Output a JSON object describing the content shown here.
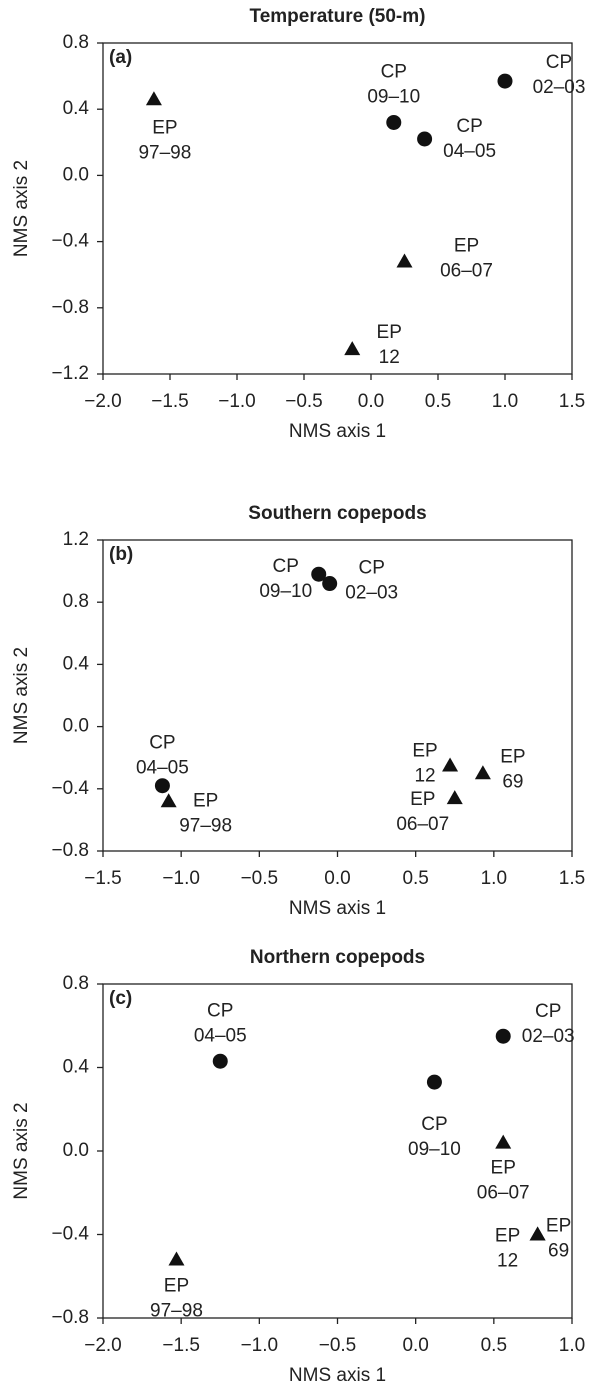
{
  "chart_data": [
    {
      "type": "scatter",
      "title": "Temperature (50-m)",
      "panel_label": "(a)",
      "xlabel": "NMS axis 1",
      "ylabel": "NMS axis 2",
      "color": "#111111",
      "x": [
        -1.62,
        0.17,
        0.4,
        1.0,
        0.25,
        -0.14
      ],
      "values": [
        0.46,
        0.32,
        0.22,
        0.57,
        -0.52,
        -1.05
      ],
      "markers": [
        "triangle",
        "circle",
        "circle",
        "circle",
        "triangle",
        "triangle"
      ],
      "point_labels": [
        [
          "EP",
          "97–98"
        ],
        [
          "CP",
          "09–10"
        ],
        [
          "CP",
          "04–05"
        ],
        [
          "CP",
          "02–03"
        ],
        [
          "EP",
          "06–07"
        ],
        [
          "EP",
          "12"
        ]
      ],
      "xlim": [
        -2,
        1.5
      ],
      "ylim": [
        -1.2,
        0.8
      ],
      "xticks": [
        {
          "value": -2,
          "label": "−2.0"
        },
        {
          "value": -1.5,
          "label": "−1.5"
        },
        {
          "value": -1,
          "label": "−1.0"
        },
        {
          "value": -0.5,
          "label": "−0.5"
        },
        {
          "value": 0,
          "label": "0.0"
        },
        0.5,
        {
          "value": 1,
          "label": "1.0"
        },
        1.5
      ],
      "yticks": [
        {
          "value": -1.2,
          "label": "−1.2"
        },
        {
          "value": -0.8,
          "label": "−0.8"
        },
        {
          "value": -0.4,
          "label": "−0.4"
        },
        {
          "value": 0,
          "label": "0.0"
        },
        0.4,
        0.8
      ]
    },
    {
      "type": "scatter",
      "title": "Southern copepods",
      "panel_label": "(b)",
      "xlabel": "NMS axis 1",
      "ylabel": "NMS axis 2",
      "color": "#111111",
      "x": [
        -0.12,
        -0.05,
        -1.12,
        -1.08,
        0.72,
        0.93,
        0.75
      ],
      "values": [
        0.98,
        0.92,
        -0.38,
        -0.48,
        -0.25,
        -0.3,
        -0.46
      ],
      "markers": [
        "circle",
        "circle",
        "circle",
        "triangle",
        "triangle",
        "triangle",
        "triangle"
      ],
      "point_labels": [
        [
          "CP",
          "09–10"
        ],
        [
          "CP",
          "02–03"
        ],
        [
          "CP",
          "04–05"
        ],
        [
          "EP",
          "97–98"
        ],
        [
          "EP",
          "12"
        ],
        [
          "EP",
          "69"
        ],
        [
          "EP",
          "06–07"
        ]
      ],
      "xlim": [
        -1.5,
        1.5
      ],
      "ylim": [
        -0.8,
        1.2
      ],
      "xticks": [
        {
          "value": -1.5,
          "label": "−1.5"
        },
        {
          "value": -1,
          "label": "−1.0"
        },
        {
          "value": -0.5,
          "label": "−0.5"
        },
        {
          "value": 0,
          "label": "0.0"
        },
        0.5,
        {
          "value": 1,
          "label": "1.0"
        },
        1.5
      ],
      "yticks": [
        {
          "value": -0.8,
          "label": "−0.8"
        },
        {
          "value": -0.4,
          "label": "−0.4"
        },
        {
          "value": 0,
          "label": "0.0"
        },
        0.4,
        0.8,
        1.2
      ]
    },
    {
      "type": "scatter",
      "title": "Northern copepods",
      "panel_label": "(c)",
      "xlabel": "NMS axis 1",
      "ylabel": "NMS axis 2",
      "color": "#111111",
      "x": [
        -1.25,
        0.56,
        0.12,
        0.56,
        0.78,
        0.78,
        -1.53
      ],
      "values": [
        0.43,
        0.55,
        0.33,
        0.04,
        -0.4,
        -0.4,
        -0.52
      ],
      "markers": [
        "circle",
        "circle",
        "circle",
        "triangle",
        "triangle",
        "triangle",
        "triangle"
      ],
      "point_labels": [
        [
          "CP",
          "04–05"
        ],
        [
          "CP",
          "02–03"
        ],
        [
          "CP",
          "09–10"
        ],
        [
          "EP",
          "06–07"
        ],
        [
          "EP",
          "12"
        ],
        [
          "EP",
          "69"
        ],
        [
          "EP",
          "97–98"
        ]
      ],
      "xlim": [
        -2,
        1
      ],
      "ylim": [
        -0.8,
        0.8
      ],
      "xticks": [
        {
          "value": -2,
          "label": "−2.0"
        },
        {
          "value": -1.5,
          "label": "−1.5"
        },
        {
          "value": -1,
          "label": "−1.0"
        },
        {
          "value": -0.5,
          "label": "−0.5"
        },
        {
          "value": 0,
          "label": "0.0"
        },
        0.5,
        {
          "value": 1,
          "label": "1.0"
        }
      ],
      "yticks": [
        {
          "value": -0.8,
          "label": "−0.8"
        },
        {
          "value": -0.4,
          "label": "−0.4"
        },
        {
          "value": 0,
          "label": "0.0"
        },
        0.4,
        0.8
      ]
    }
  ]
}
